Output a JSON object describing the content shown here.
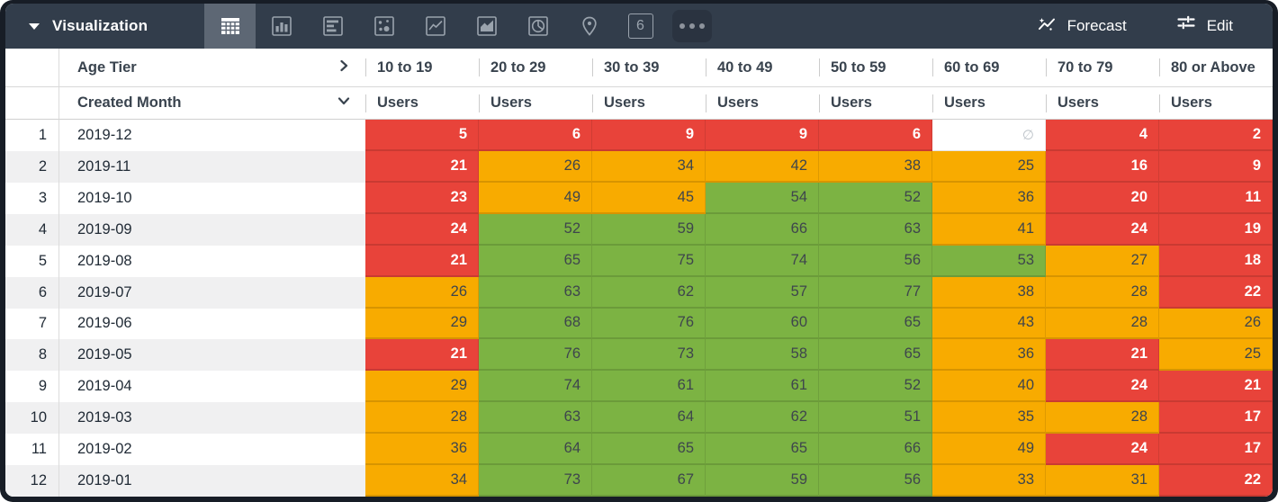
{
  "toolbar": {
    "title": "Visualization",
    "forecast_label": "Forecast",
    "edit_label": "Edit",
    "single_value_glyph": "6",
    "viz_icons": [
      "table",
      "column-chart",
      "row-chart",
      "scatter",
      "line-chart",
      "area-chart",
      "pie-chart",
      "map-pin",
      "single-value",
      "more-options"
    ],
    "selected_viz": "table",
    "colors": {
      "bar_bg": "#323D4B",
      "selected_tab_bg": "#5D6774",
      "frame": "#171D26"
    }
  },
  "table": {
    "pivot_field": "Age Tier",
    "row_field": "Created Month",
    "measure_label": "Users",
    "columns": [
      "10 to 19",
      "20 to 29",
      "30 to 39",
      "40 to 49",
      "50 to 59",
      "60 to 69",
      "70 to 79",
      "80 or Above"
    ],
    "null_symbol": "∅",
    "palette": {
      "red": "#E8433A",
      "orange": "#F8AB00",
      "green": "#7CB343",
      "null": "#FFFFFF"
    },
    "rows": [
      {
        "num": "1",
        "month": "2019-12",
        "cells": [
          {
            "v": "5",
            "c": "red"
          },
          {
            "v": "6",
            "c": "red"
          },
          {
            "v": "9",
            "c": "red"
          },
          {
            "v": "9",
            "c": "red"
          },
          {
            "v": "6",
            "c": "red"
          },
          {
            "v": "∅",
            "c": "null"
          },
          {
            "v": "4",
            "c": "red"
          },
          {
            "v": "2",
            "c": "red"
          }
        ]
      },
      {
        "num": "2",
        "month": "2019-11",
        "cells": [
          {
            "v": "21",
            "c": "red"
          },
          {
            "v": "26",
            "c": "orange"
          },
          {
            "v": "34",
            "c": "orange"
          },
          {
            "v": "42",
            "c": "orange"
          },
          {
            "v": "38",
            "c": "orange"
          },
          {
            "v": "25",
            "c": "orange"
          },
          {
            "v": "16",
            "c": "red"
          },
          {
            "v": "9",
            "c": "red"
          }
        ]
      },
      {
        "num": "3",
        "month": "2019-10",
        "cells": [
          {
            "v": "23",
            "c": "red"
          },
          {
            "v": "49",
            "c": "orange"
          },
          {
            "v": "45",
            "c": "orange"
          },
          {
            "v": "54",
            "c": "green"
          },
          {
            "v": "52",
            "c": "green"
          },
          {
            "v": "36",
            "c": "orange"
          },
          {
            "v": "20",
            "c": "red"
          },
          {
            "v": "11",
            "c": "red"
          }
        ]
      },
      {
        "num": "4",
        "month": "2019-09",
        "cells": [
          {
            "v": "24",
            "c": "red"
          },
          {
            "v": "52",
            "c": "green"
          },
          {
            "v": "59",
            "c": "green"
          },
          {
            "v": "66",
            "c": "green"
          },
          {
            "v": "63",
            "c": "green"
          },
          {
            "v": "41",
            "c": "orange"
          },
          {
            "v": "24",
            "c": "red"
          },
          {
            "v": "19",
            "c": "red"
          }
        ]
      },
      {
        "num": "5",
        "month": "2019-08",
        "cells": [
          {
            "v": "21",
            "c": "red"
          },
          {
            "v": "65",
            "c": "green"
          },
          {
            "v": "75",
            "c": "green"
          },
          {
            "v": "74",
            "c": "green"
          },
          {
            "v": "56",
            "c": "green"
          },
          {
            "v": "53",
            "c": "green"
          },
          {
            "v": "27",
            "c": "orange"
          },
          {
            "v": "18",
            "c": "red"
          }
        ]
      },
      {
        "num": "6",
        "month": "2019-07",
        "cells": [
          {
            "v": "26",
            "c": "orange"
          },
          {
            "v": "63",
            "c": "green"
          },
          {
            "v": "62",
            "c": "green"
          },
          {
            "v": "57",
            "c": "green"
          },
          {
            "v": "77",
            "c": "green"
          },
          {
            "v": "38",
            "c": "orange"
          },
          {
            "v": "28",
            "c": "orange"
          },
          {
            "v": "22",
            "c": "red"
          }
        ]
      },
      {
        "num": "7",
        "month": "2019-06",
        "cells": [
          {
            "v": "29",
            "c": "orange"
          },
          {
            "v": "68",
            "c": "green"
          },
          {
            "v": "76",
            "c": "green"
          },
          {
            "v": "60",
            "c": "green"
          },
          {
            "v": "65",
            "c": "green"
          },
          {
            "v": "43",
            "c": "orange"
          },
          {
            "v": "28",
            "c": "orange"
          },
          {
            "v": "26",
            "c": "orange"
          }
        ]
      },
      {
        "num": "8",
        "month": "2019-05",
        "cells": [
          {
            "v": "21",
            "c": "red"
          },
          {
            "v": "76",
            "c": "green"
          },
          {
            "v": "73",
            "c": "green"
          },
          {
            "v": "58",
            "c": "green"
          },
          {
            "v": "65",
            "c": "green"
          },
          {
            "v": "36",
            "c": "orange"
          },
          {
            "v": "21",
            "c": "red"
          },
          {
            "v": "25",
            "c": "orange"
          }
        ]
      },
      {
        "num": "9",
        "month": "2019-04",
        "cells": [
          {
            "v": "29",
            "c": "orange"
          },
          {
            "v": "74",
            "c": "green"
          },
          {
            "v": "61",
            "c": "green"
          },
          {
            "v": "61",
            "c": "green"
          },
          {
            "v": "52",
            "c": "green"
          },
          {
            "v": "40",
            "c": "orange"
          },
          {
            "v": "24",
            "c": "red"
          },
          {
            "v": "21",
            "c": "red"
          }
        ]
      },
      {
        "num": "10",
        "month": "2019-03",
        "cells": [
          {
            "v": "28",
            "c": "orange"
          },
          {
            "v": "63",
            "c": "green"
          },
          {
            "v": "64",
            "c": "green"
          },
          {
            "v": "62",
            "c": "green"
          },
          {
            "v": "51",
            "c": "green"
          },
          {
            "v": "35",
            "c": "orange"
          },
          {
            "v": "28",
            "c": "orange"
          },
          {
            "v": "17",
            "c": "red"
          }
        ]
      },
      {
        "num": "11",
        "month": "2019-02",
        "cells": [
          {
            "v": "36",
            "c": "orange"
          },
          {
            "v": "64",
            "c": "green"
          },
          {
            "v": "65",
            "c": "green"
          },
          {
            "v": "65",
            "c": "green"
          },
          {
            "v": "66",
            "c": "green"
          },
          {
            "v": "49",
            "c": "orange"
          },
          {
            "v": "24",
            "c": "red"
          },
          {
            "v": "17",
            "c": "red"
          }
        ]
      },
      {
        "num": "12",
        "month": "2019-01",
        "cells": [
          {
            "v": "34",
            "c": "orange"
          },
          {
            "v": "73",
            "c": "green"
          },
          {
            "v": "67",
            "c": "green"
          },
          {
            "v": "59",
            "c": "green"
          },
          {
            "v": "56",
            "c": "green"
          },
          {
            "v": "33",
            "c": "orange"
          },
          {
            "v": "31",
            "c": "orange"
          },
          {
            "v": "22",
            "c": "red"
          }
        ]
      }
    ]
  }
}
